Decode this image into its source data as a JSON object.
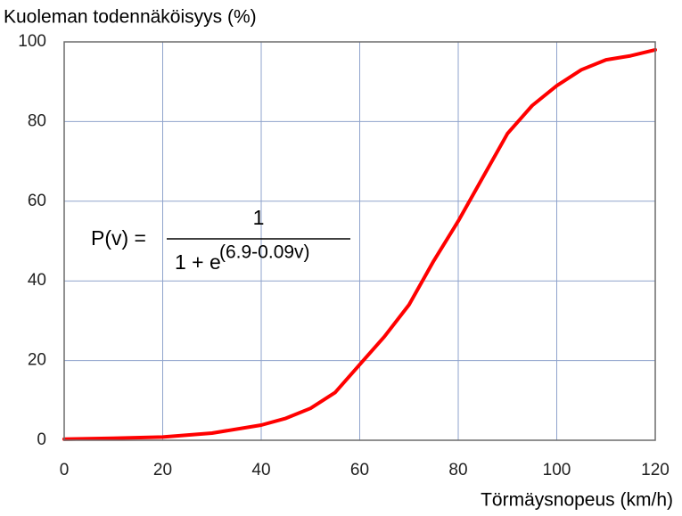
{
  "chart_data": {
    "type": "line",
    "y_title": "Kuoleman todennäköisyys (%)",
    "x_title": "Törmäysnopeus (km/h)",
    "annotations": [
      "P(v) =",
      "1",
      "1 + e",
      "(6.9-0.09v)"
    ],
    "x": [
      0,
      10,
      20,
      30,
      40,
      45,
      50,
      55,
      60,
      65,
      70,
      75,
      80,
      85,
      90,
      95,
      100,
      105,
      110,
      115,
      120
    ],
    "series": [
      {
        "color": "#ff0000",
        "values": [
          0.3,
          0.5,
          0.8,
          1.8,
          3.8,
          5.5,
          8,
          12,
          19,
          26,
          34,
          45,
          55,
          66,
          77,
          84,
          89,
          93,
          95.5,
          96.5,
          98
        ]
      }
    ],
    "xlim": [
      0,
      120
    ],
    "xticks": [
      0,
      20,
      40,
      60,
      80,
      100,
      120
    ],
    "ylim": [
      0,
      100
    ],
    "yticks": [
      0,
      20,
      40,
      60,
      80,
      100
    ],
    "grid": true
  }
}
